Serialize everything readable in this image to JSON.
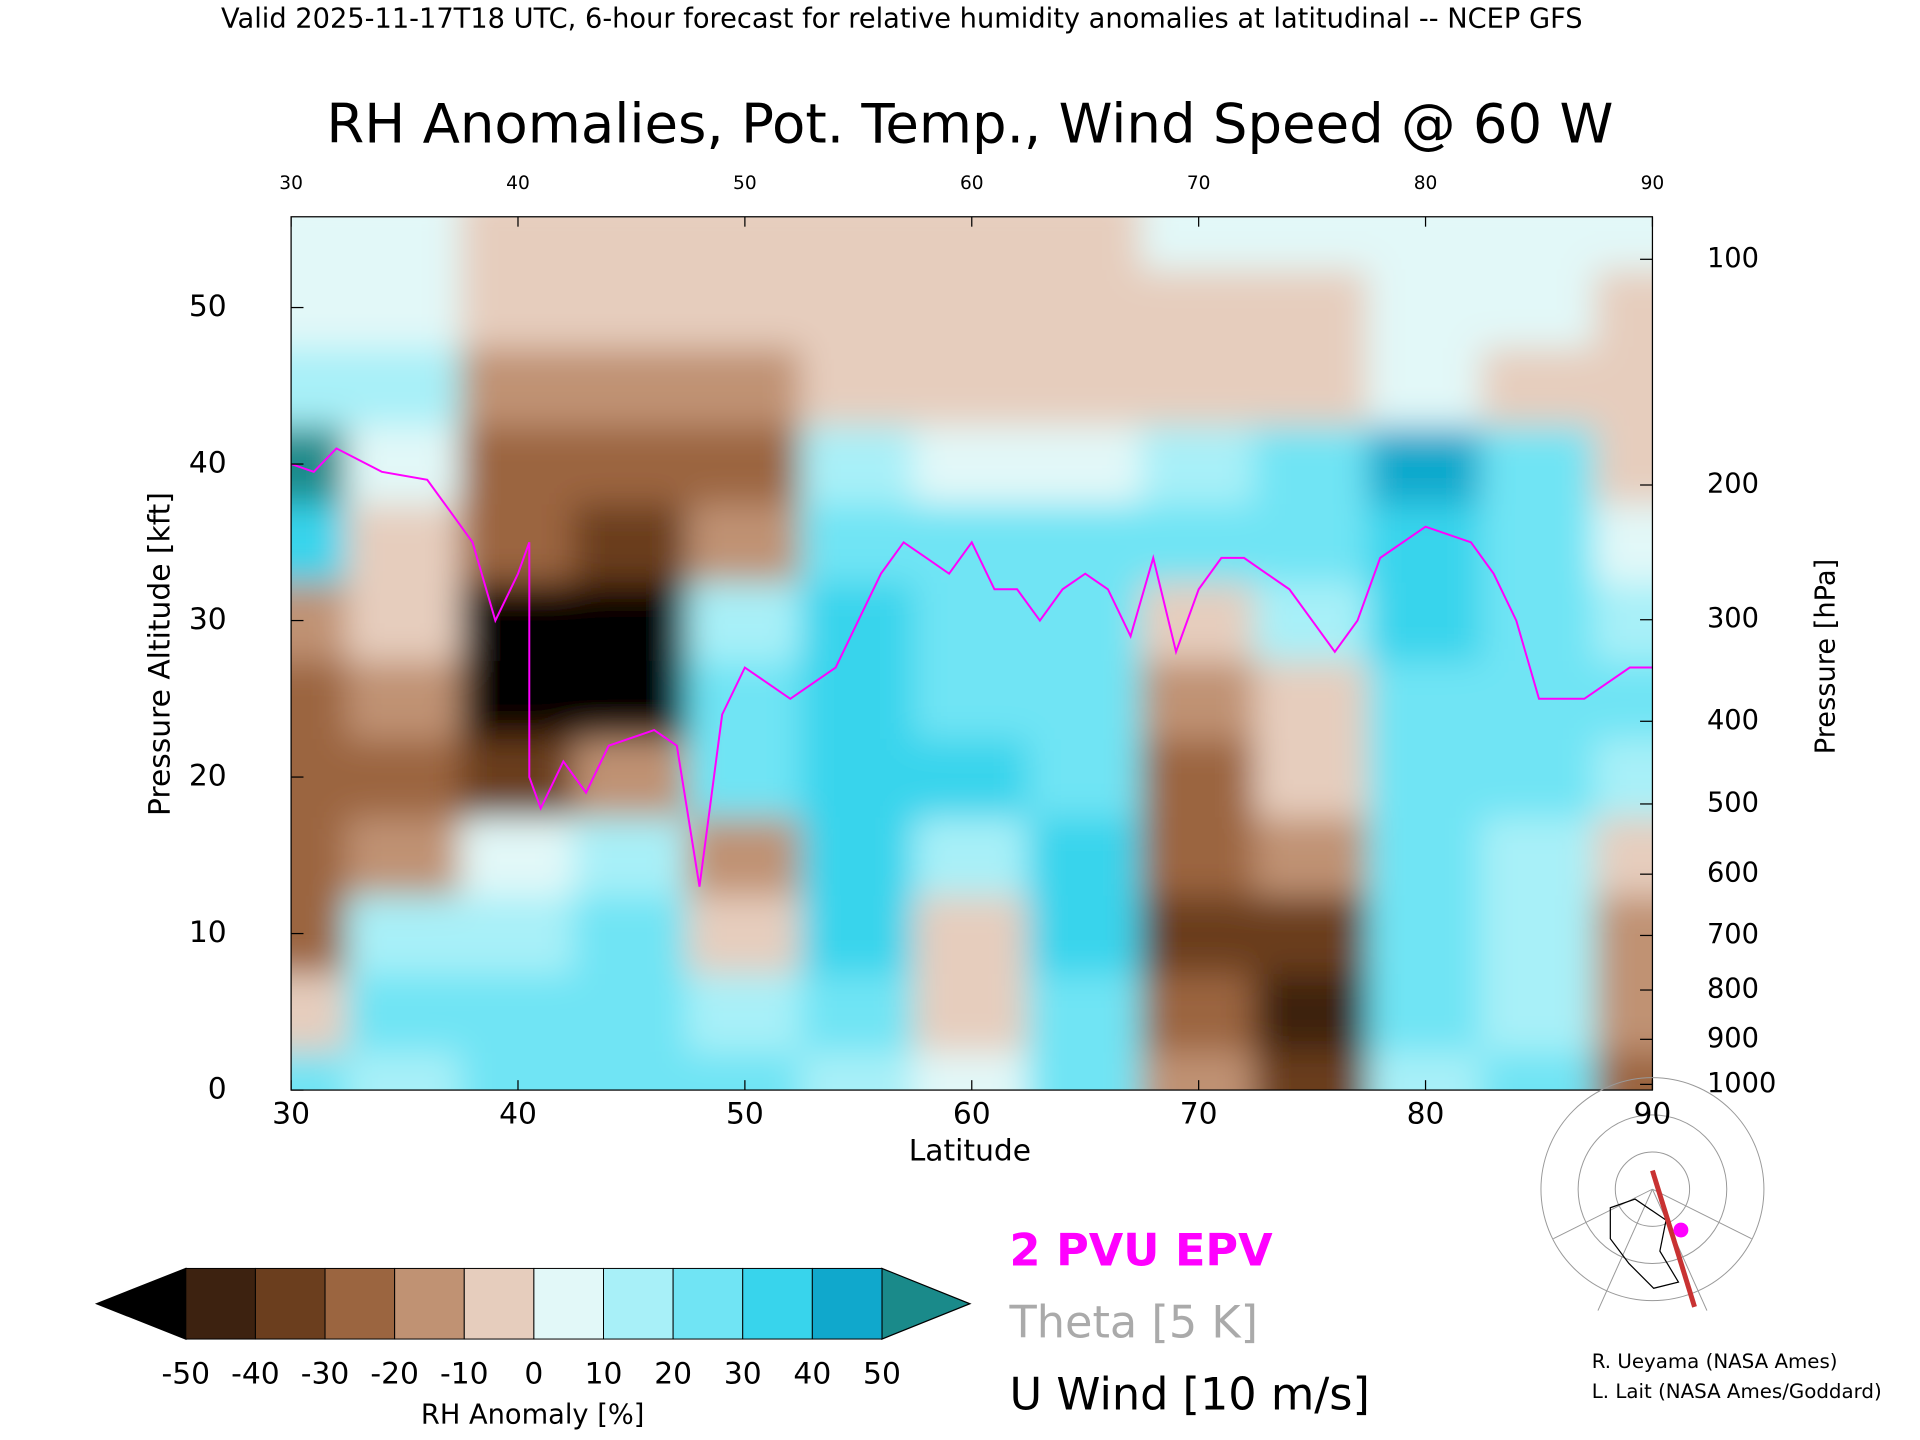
{
  "chart_data": {
    "type": "contourf",
    "header": "Valid 2025-11-17T18 UTC, 6-hour forecast for relative humidity anomalies at latitudinal -- NCEP GFS",
    "title": "RH Anomalies, Pot. Temp., Wind Speed @ 60 W",
    "xlabel": "Latitude",
    "ylabel": "Pressure Altitude [kft]",
    "y2label": "Pressure [hPa]",
    "xlim": [
      30,
      90
    ],
    "xticks": [
      30,
      40,
      50,
      60,
      70,
      80,
      90
    ],
    "ylim": [
      0,
      55.8
    ],
    "yticks": [
      0,
      10,
      20,
      30,
      40,
      50
    ],
    "y2scale": "standard-atmosphere",
    "y2ticks": [
      100,
      200,
      300,
      400,
      500,
      600,
      700,
      800,
      900,
      1000
    ],
    "x": [
      30,
      35,
      40,
      45,
      50,
      55,
      60,
      65,
      70,
      75,
      80,
      85,
      90
    ],
    "y": [
      0,
      5,
      10,
      15,
      20,
      25,
      30,
      35,
      40,
      45,
      50,
      55
    ],
    "z": [
      [
        20,
        15,
        25,
        20,
        20,
        10,
        0,
        20,
        -20,
        -40,
        10,
        20,
        -30
      ],
      [
        -10,
        20,
        20,
        25,
        15,
        20,
        -10,
        25,
        -30,
        -50,
        20,
        15,
        -15
      ],
      [
        -25,
        10,
        15,
        20,
        -10,
        30,
        -10,
        30,
        -35,
        -35,
        25,
        10,
        -15
      ],
      [
        -30,
        -20,
        5,
        15,
        -20,
        30,
        15,
        30,
        -30,
        -20,
        20,
        15,
        -10
      ],
      [
        -30,
        -30,
        -40,
        -20,
        20,
        35,
        30,
        20,
        -30,
        -10,
        25,
        20,
        10
      ],
      [
        -25,
        -20,
        -55,
        -55,
        25,
        30,
        25,
        25,
        -20,
        -5,
        25,
        20,
        20
      ],
      [
        -20,
        -10,
        -55,
        -55,
        10,
        30,
        25,
        20,
        -10,
        10,
        30,
        25,
        15
      ],
      [
        30,
        -10,
        -30,
        -35,
        -20,
        25,
        20,
        20,
        20,
        20,
        30,
        20,
        5
      ],
      [
        50,
        5,
        -30,
        -30,
        -25,
        10,
        5,
        0,
        10,
        25,
        45,
        20,
        -5
      ],
      [
        15,
        10,
        -15,
        -20,
        -15,
        -10,
        -5,
        -10,
        -5,
        -5,
        0,
        -5,
        -10
      ],
      [
        5,
        5,
        -5,
        -10,
        -5,
        -5,
        -5,
        -5,
        -5,
        -5,
        0,
        0,
        -5
      ],
      [
        0,
        0,
        -5,
        -5,
        -5,
        -5,
        -5,
        -5,
        0,
        0,
        0,
        0,
        0
      ]
    ],
    "colorbar": {
      "label": "RH Anomaly [%]",
      "levels": [
        -50,
        -40,
        -30,
        -20,
        -10,
        0,
        10,
        20,
        30,
        40,
        50
      ],
      "colors": [
        "#000000",
        "#3d2210",
        "#6b3e1e",
        "#9b6540",
        "#c09273",
        "#e6cdbd",
        "#e2f8f8",
        "#a8f0f8",
        "#70e4f4",
        "#38d4ec",
        "#10a8cc",
        "#1a8a8a"
      ]
    },
    "series": [
      {
        "name": "2 PVU EPV",
        "color": "#ff00ff",
        "x": [
          30,
          31,
          32,
          34,
          36,
          37,
          38,
          39,
          40,
          40.5,
          40.5,
          41,
          42,
          43,
          44,
          46,
          47,
          48,
          49,
          50,
          52,
          54,
          55,
          56,
          57,
          58,
          59,
          60,
          61,
          62,
          63,
          64,
          65,
          66,
          67,
          68,
          69,
          70,
          71,
          72,
          73,
          74,
          75,
          76,
          77,
          78,
          79,
          80,
          82,
          83,
          84,
          85,
          87,
          89,
          90
        ],
        "y": [
          40,
          39.5,
          41,
          39.5,
          39,
          37,
          35,
          30,
          33,
          35,
          20,
          18,
          21,
          19,
          22,
          23,
          22,
          13,
          24,
          27,
          25,
          27,
          30,
          33,
          35,
          34,
          33,
          35,
          32,
          32,
          30,
          32,
          33,
          32,
          29,
          34,
          28,
          32,
          34,
          34,
          33,
          32,
          30,
          28,
          30,
          34,
          35,
          36,
          35,
          33,
          30,
          25,
          25,
          27,
          27
        ]
      }
    ],
    "contour_legend": [
      {
        "name": "Theta [5 K]",
        "color": "#aaaaaa"
      },
      {
        "name": "U Wind [10 m/s]",
        "color": "#000000"
      }
    ],
    "credits": [
      "R. Ueyama (NASA Ames)",
      "L. Lait (NASA Ames/Goddard)"
    ]
  }
}
